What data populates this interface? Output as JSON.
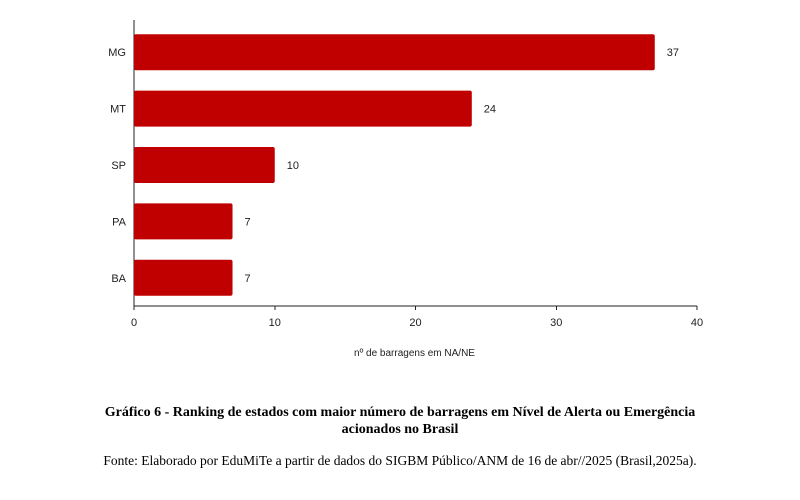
{
  "chart_data": {
    "type": "bar",
    "orientation": "horizontal",
    "categories": [
      "MG",
      "MT",
      "SP",
      "PA",
      "BA"
    ],
    "values": [
      37,
      24,
      10,
      7,
      7
    ],
    "xlabel": "nº de barragens em NA/NE",
    "xlim": [
      0,
      40
    ],
    "xticks": [
      0,
      10,
      20,
      30,
      40
    ],
    "bar_color": "#c00000",
    "grid": false,
    "legend": "none"
  },
  "caption": {
    "title_line1": "Gráfico 6 - Ranking de estados com maior número de barragens em Nível de Alerta ou Emergência",
    "title_line2": "acionados no Brasil",
    "source": "Fonte: Elaborado por EduMiTe a partir de dados do SIGBM Público/ANM de 16 de abr//2025 (Brasil,2025a)."
  }
}
